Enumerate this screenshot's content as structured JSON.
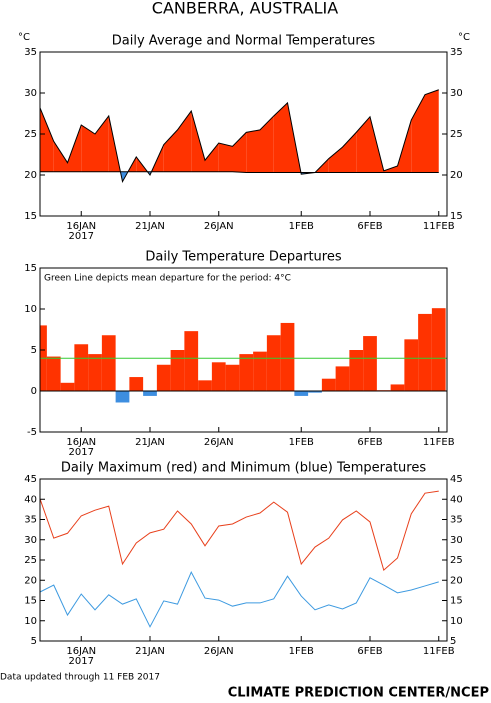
{
  "title": "CANBERRA, AUSTRALIA",
  "chart_data": [
    {
      "type": "area",
      "title": "Daily Average and Normal Temperatures",
      "y_label": "°C",
      "y2_label": "°C",
      "categories": [
        null,
        null,
        null,
        "16JAN",
        null,
        null,
        null,
        null,
        "21JAN",
        null,
        null,
        null,
        null,
        "26JAN",
        null,
        null,
        null,
        null,
        null,
        "1FEB",
        null,
        null,
        null,
        null,
        "6FEB",
        null,
        null,
        null,
        null,
        "11FEB"
      ],
      "year": "2017",
      "series": [
        {
          "color": "#ff3300",
          "below_color": "#3d8ee0",
          "values": [
            28.2,
            24.1,
            21.5,
            26.1,
            25.0,
            27.2,
            19.2,
            22.2,
            20.0,
            23.7,
            25.5,
            27.8,
            21.8,
            23.9,
            23.5,
            25.2,
            25.5,
            27.2,
            28.8,
            20.1,
            20.3,
            22.0,
            23.4,
            25.2,
            27.1,
            20.5,
            21.1,
            26.7,
            29.8,
            30.4
          ]
        },
        {
          "color": "#000000",
          "values": [
            20.4,
            20.4,
            20.4,
            20.4,
            20.4,
            20.4,
            20.4,
            20.4,
            20.4,
            20.4,
            20.4,
            20.4,
            20.4,
            20.4,
            20.4,
            20.3,
            20.3,
            20.3,
            20.3,
            20.3,
            20.3,
            20.3,
            20.3,
            20.3,
            20.3,
            20.3,
            20.3,
            20.3,
            20.3,
            20.3
          ]
        }
      ],
      "ylim": [
        15,
        35
      ],
      "yticks": [
        15,
        20,
        25,
        30,
        35
      ],
      "y2lim": [
        15,
        35
      ],
      "y2ticks": [
        15,
        20,
        25,
        30,
        35
      ]
    },
    {
      "type": "bar",
      "title": "Daily Temperature Departures",
      "annotation": "Green Line depicts mean departure for the period: 4°C",
      "categories": [
        null,
        null,
        null,
        "16JAN",
        null,
        null,
        null,
        null,
        "21JAN",
        null,
        null,
        null,
        null,
        "26JAN",
        null,
        null,
        null,
        null,
        null,
        "1FEB",
        null,
        null,
        null,
        null,
        "6FEB",
        null,
        null,
        null,
        null,
        "11FEB"
      ],
      "year": "2017",
      "color": "#ff3300",
      "negative_color": "#3d8ee0",
      "values": [
        8.0,
        4.2,
        1.0,
        5.7,
        4.5,
        6.8,
        -1.4,
        1.7,
        -0.6,
        3.2,
        5.0,
        7.3,
        1.3,
        3.5,
        3.2,
        4.5,
        4.8,
        6.8,
        8.3,
        -0.6,
        -0.2,
        1.5,
        3.0,
        5.0,
        6.7,
        0.1,
        0.8,
        6.3,
        9.4,
        10.1
      ],
      "mean": 4,
      "mean_color": "#33cc33",
      "ylim": [
        -5,
        15
      ],
      "yticks": [
        -5,
        0,
        5,
        10,
        15
      ]
    },
    {
      "type": "line",
      "title": "Daily Maximum (red) and Minimum (blue) Temperatures",
      "categories": [
        null,
        null,
        null,
        "16JAN",
        null,
        null,
        null,
        null,
        "21JAN",
        null,
        null,
        null,
        null,
        "26JAN",
        null,
        null,
        null,
        null,
        null,
        "1FEB",
        null,
        null,
        null,
        null,
        "6FEB",
        null,
        null,
        null,
        null,
        "11FEB"
      ],
      "year": "2017",
      "series": [
        {
          "color": "#e8401c",
          "values": [
            40.1,
            30.4,
            31.6,
            35.9,
            37.3,
            38.3,
            24.0,
            29.2,
            31.7,
            32.6,
            37.1,
            33.9,
            28.5,
            33.4,
            33.9,
            35.6,
            36.6,
            39.3,
            36.8,
            24.0,
            28.2,
            30.4,
            34.9,
            37.1,
            34.4,
            22.5,
            25.5,
            36.4,
            41.5,
            42.0
          ]
        },
        {
          "color": "#3d9ae0",
          "values": [
            17.1,
            18.8,
            11.4,
            16.6,
            12.7,
            16.4,
            14.1,
            15.4,
            8.5,
            14.9,
            14.1,
            22.0,
            15.6,
            15.1,
            13.6,
            14.4,
            14.4,
            15.4,
            21.0,
            16.1,
            12.7,
            13.9,
            12.9,
            14.4,
            20.6,
            18.8,
            16.9,
            17.6,
            18.6,
            19.6
          ]
        }
      ],
      "ylim": [
        5,
        45
      ],
      "yticks": [
        5,
        10,
        15,
        20,
        25,
        30,
        35,
        40,
        45
      ],
      "y2lim": [
        5,
        45
      ],
      "y2ticks": [
        5,
        10,
        15,
        20,
        25,
        30,
        35,
        40,
        45
      ]
    }
  ],
  "footer": {
    "updated": "Data updated through 11 FEB 2017",
    "credit": "CLIMATE PREDICTION CENTER/NCEP"
  }
}
